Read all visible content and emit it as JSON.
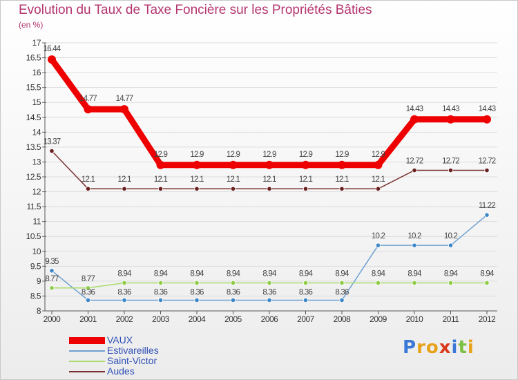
{
  "chart_data": {
    "type": "line",
    "title": "Evolution du Taux de Taxe Foncière sur les Propriétés Bâties",
    "ylabel": "(en %)",
    "xlabel": "",
    "ylim": [
      8,
      17
    ],
    "yticks": [
      "8",
      "8.5",
      "9",
      "9.5",
      "10",
      "10.5",
      "11",
      "11.5",
      "12",
      "12.5",
      "13",
      "13.5",
      "14",
      "14.5",
      "15",
      "15.5",
      "16",
      "16.5",
      "17"
    ],
    "categories": [
      "2000",
      "2001",
      "2002",
      "2003",
      "2004",
      "2005",
      "2006",
      "2007",
      "2008",
      "2009",
      "2010",
      "2011",
      "2012"
    ],
    "series": [
      {
        "name": "VAUX",
        "color": "#ee0000",
        "values": [
          16.44,
          14.77,
          14.77,
          12.9,
          12.9,
          12.9,
          12.9,
          12.9,
          12.9,
          12.9,
          14.43,
          14.43,
          14.43
        ],
        "labels": [
          "16.44",
          "14.77",
          "14.77",
          "12.9",
          "12.9",
          "12.9",
          "12.9",
          "12.9",
          "12.9",
          "12.9",
          "14.43",
          "14.43",
          "14.43"
        ]
      },
      {
        "name": "Estivareilles",
        "color": "#6fa0d2",
        "marker": "#3d86c8",
        "values": [
          9.35,
          8.36,
          8.36,
          8.36,
          8.36,
          8.36,
          8.36,
          8.36,
          8.36,
          10.2,
          10.2,
          10.2,
          11.22
        ],
        "labels": [
          "9.35",
          "8.36",
          "8.36",
          "8.36",
          "8.36",
          "8.36",
          "8.36",
          "8.36",
          "8.36",
          "10.2",
          "10.2",
          "10.2",
          "11.22"
        ]
      },
      {
        "name": "Saint-Victor",
        "color": "#a9dc6c",
        "marker": "#8dcc45",
        "values": [
          8.77,
          8.77,
          8.94,
          8.94,
          8.94,
          8.94,
          8.94,
          8.94,
          8.94,
          8.94,
          8.94,
          8.94,
          8.94
        ],
        "labels": [
          "8.77",
          "8.77",
          "8.94",
          "8.94",
          "8.94",
          "8.94",
          "8.94",
          "8.94",
          "8.94",
          "8.94",
          "8.94",
          "8.94",
          "8.94"
        ]
      },
      {
        "name": "Audes",
        "color": "#7a3030",
        "marker": "#6a1f1f",
        "values": [
          13.37,
          12.1,
          12.1,
          12.1,
          12.1,
          12.1,
          12.1,
          12.1,
          12.1,
          12.1,
          12.72,
          12.72,
          12.72
        ],
        "labels": [
          "13.37",
          "12.1",
          "12.1",
          "12.1",
          "12.1",
          "12.1",
          "12.1",
          "12.1",
          "12.1",
          "12.1",
          "12.72",
          "12.72",
          "12.72"
        ]
      }
    ]
  },
  "legend": {
    "items": [
      {
        "label": "VAUX",
        "color": "#ee0000"
      },
      {
        "label": "Estivareilles",
        "color": "#6fa0d2"
      },
      {
        "label": "Saint-Victor",
        "color": "#a9dc6c"
      },
      {
        "label": "Audes",
        "color": "#7a3030"
      }
    ]
  },
  "logo": {
    "text": "Proxiti",
    "letters": [
      "P",
      "r",
      "o",
      "x",
      "i",
      "t",
      "i"
    ],
    "colors": [
      "#3a78d8",
      "#e8a21a",
      "#e8a21a",
      "#d93a1c",
      "#3a78d8",
      "#7cc043",
      "#e8a21a"
    ]
  }
}
